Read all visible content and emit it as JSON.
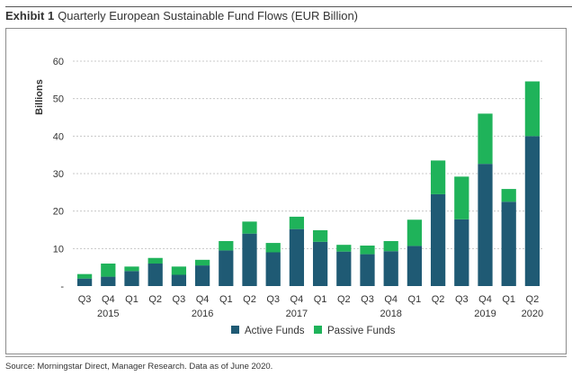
{
  "header": {
    "exhibit_label": "Exhibit 1",
    "title": "Quarterly European Sustainable Fund Flows (EUR Billion)"
  },
  "source": "Source: Morningstar Direct, Manager Research. Data as of June 2020.",
  "chart_data": {
    "type": "bar",
    "stacked": true,
    "ylabel": "Billions",
    "xlabel": "",
    "ylim": [
      0,
      60
    ],
    "yticks": [
      0,
      10,
      20,
      30,
      40,
      50,
      60
    ],
    "grid": "horizontal dotted",
    "legend_position": "bottom-center",
    "categories": [
      "Q3",
      "Q4",
      "Q1",
      "Q2",
      "Q3",
      "Q4",
      "Q1",
      "Q2",
      "Q3",
      "Q4",
      "Q1",
      "Q2",
      "Q3",
      "Q4",
      "Q1",
      "Q2",
      "Q3",
      "Q4",
      "Q1",
      "Q2"
    ],
    "year_labels": [
      "",
      "2015",
      "",
      "",
      "",
      "2016",
      "",
      "",
      "",
      "2017",
      "",
      "",
      "",
      "2018",
      "",
      "",
      "",
      "2019",
      "",
      "2020"
    ],
    "series": [
      {
        "name": "Active Funds",
        "color": "#1f5a74",
        "values": [
          2.0,
          2.5,
          4.0,
          6.0,
          3.0,
          5.5,
          9.5,
          14.0,
          9.0,
          15.2,
          11.8,
          9.2,
          8.5,
          9.3,
          10.7,
          24.5,
          17.8,
          32.6,
          22.5,
          40.0
        ]
      },
      {
        "name": "Passive Funds",
        "color": "#1fb35a",
        "values": [
          1.2,
          3.5,
          1.2,
          1.5,
          2.2,
          1.5,
          2.5,
          3.2,
          2.5,
          3.3,
          3.1,
          1.8,
          2.3,
          2.7,
          7.0,
          9.0,
          11.4,
          13.4,
          3.4,
          14.6
        ]
      }
    ]
  }
}
